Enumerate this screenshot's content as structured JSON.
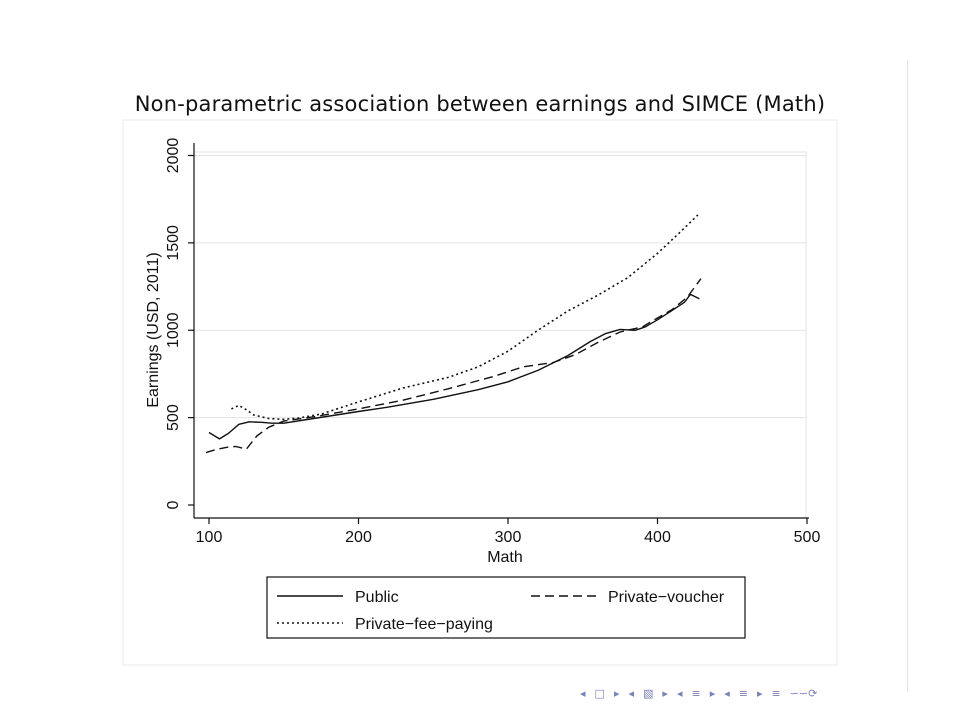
{
  "slide": {
    "title": "Non-parametric association between earnings and SIMCE (Math)"
  },
  "chart_data": {
    "type": "line",
    "title": "",
    "xlabel": "Math",
    "ylabel": "Earnings (USD, 2011)",
    "xlim": [
      95,
      500
    ],
    "ylim": [
      -20,
      2040
    ],
    "x_ticks": [
      "100",
      "200",
      "300",
      "400",
      "500"
    ],
    "y_ticks": [
      "0",
      "500",
      "1000",
      "1500",
      "2000"
    ],
    "grid": true,
    "legend_position": "bottom",
    "series": [
      {
        "name": "Public",
        "style": "solid",
        "color": "#111111",
        "points": [
          [
            100,
            415
          ],
          [
            107,
            378
          ],
          [
            113,
            410
          ],
          [
            120,
            462
          ],
          [
            127,
            476
          ],
          [
            135,
            473
          ],
          [
            142,
            468
          ],
          [
            150,
            468
          ],
          [
            170,
            495
          ],
          [
            200,
            535
          ],
          [
            220,
            560
          ],
          [
            250,
            605
          ],
          [
            280,
            660
          ],
          [
            300,
            705
          ],
          [
            320,
            770
          ],
          [
            340,
            855
          ],
          [
            355,
            935
          ],
          [
            365,
            980
          ],
          [
            375,
            1005
          ],
          [
            385,
            1000
          ],
          [
            392,
            1020
          ],
          [
            400,
            1060
          ],
          [
            410,
            1115
          ],
          [
            418,
            1160
          ],
          [
            422,
            1205
          ],
          [
            428,
            1180
          ]
        ]
      },
      {
        "name": "Private−voucher",
        "style": "dash",
        "color": "#111111",
        "points": [
          [
            98,
            300
          ],
          [
            105,
            318
          ],
          [
            112,
            330
          ],
          [
            118,
            335
          ],
          [
            125,
            320
          ],
          [
            132,
            395
          ],
          [
            140,
            445
          ],
          [
            150,
            480
          ],
          [
            170,
            505
          ],
          [
            200,
            550
          ],
          [
            230,
            600
          ],
          [
            260,
            665
          ],
          [
            290,
            735
          ],
          [
            310,
            790
          ],
          [
            330,
            815
          ],
          [
            345,
            860
          ],
          [
            360,
            930
          ],
          [
            375,
            990
          ],
          [
            390,
            1020
          ],
          [
            400,
            1070
          ],
          [
            410,
            1120
          ],
          [
            420,
            1190
          ],
          [
            429,
            1295
          ]
        ]
      },
      {
        "name": "Private−fee−paying",
        "style": "dot",
        "color": "#111111",
        "points": [
          [
            115,
            550
          ],
          [
            120,
            570
          ],
          [
            125,
            545
          ],
          [
            130,
            515
          ],
          [
            140,
            495
          ],
          [
            150,
            490
          ],
          [
            160,
            498
          ],
          [
            175,
            520
          ],
          [
            200,
            590
          ],
          [
            230,
            670
          ],
          [
            260,
            730
          ],
          [
            280,
            790
          ],
          [
            300,
            880
          ],
          [
            320,
            1000
          ],
          [
            340,
            1110
          ],
          [
            360,
            1200
          ],
          [
            380,
            1300
          ],
          [
            400,
            1440
          ],
          [
            415,
            1560
          ],
          [
            427,
            1660
          ]
        ]
      }
    ]
  },
  "nav": {
    "glyphs": [
      "◂",
      "□",
      "▸",
      "◂",
      "▧",
      "▸",
      "◂",
      "≡",
      "▸",
      "◂",
      "≡",
      "▸",
      "≡",
      "∽∽⟳"
    ]
  }
}
